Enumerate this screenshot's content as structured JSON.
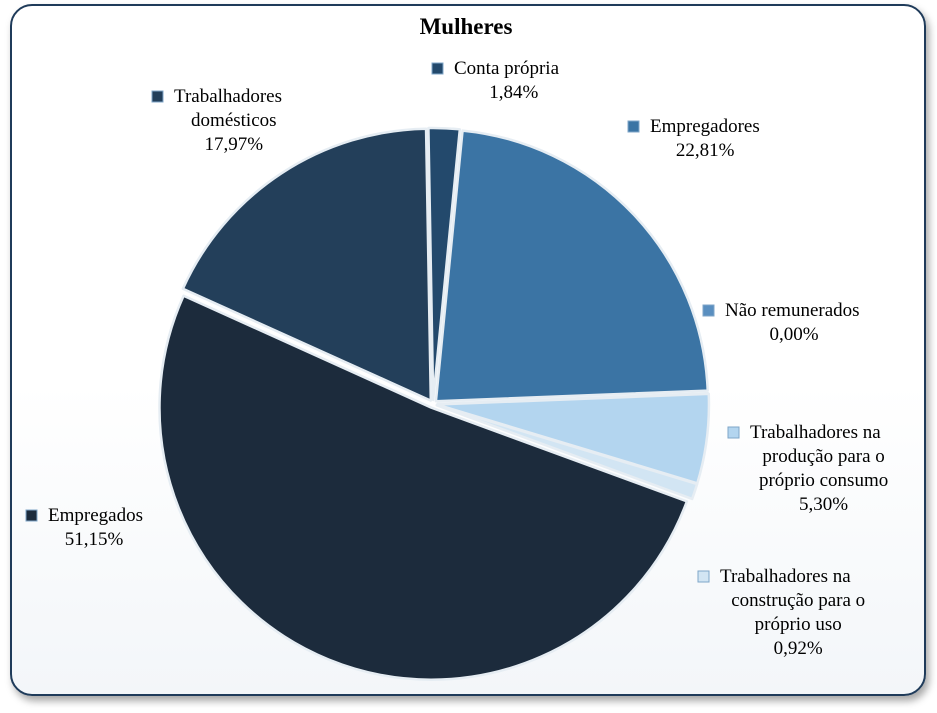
{
  "chart_data": {
    "type": "pie",
    "title": "Mulheres",
    "slices": [
      {
        "label": "Conta própria",
        "value": 1.84,
        "value_label": "1,84%",
        "color": "#23496c"
      },
      {
        "label": "Empregadores",
        "value": 22.81,
        "value_label": "22,81%",
        "color": "#3b74a4"
      },
      {
        "label": "Não remunerados",
        "value": 0.0,
        "value_label": "0,00%",
        "color": "#5a8fc0"
      },
      {
        "label": "Trabalhadores na produção para o próprio consumo",
        "value": 5.3,
        "value_label": "5,30%",
        "color": "#b3d5ef"
      },
      {
        "label": "Trabalhadores na construção para o próprio uso",
        "value": 0.92,
        "value_label": "0,92%",
        "color": "#d2e5f3"
      },
      {
        "label": "Empregados",
        "value": 51.15,
        "value_label": "51,15%",
        "color": "#1c2b3c"
      },
      {
        "label": "Trabalhadores domésticos",
        "value": 17.97,
        "value_label": "17,97%",
        "color": "#233f5a"
      }
    ],
    "legend": "none"
  }
}
